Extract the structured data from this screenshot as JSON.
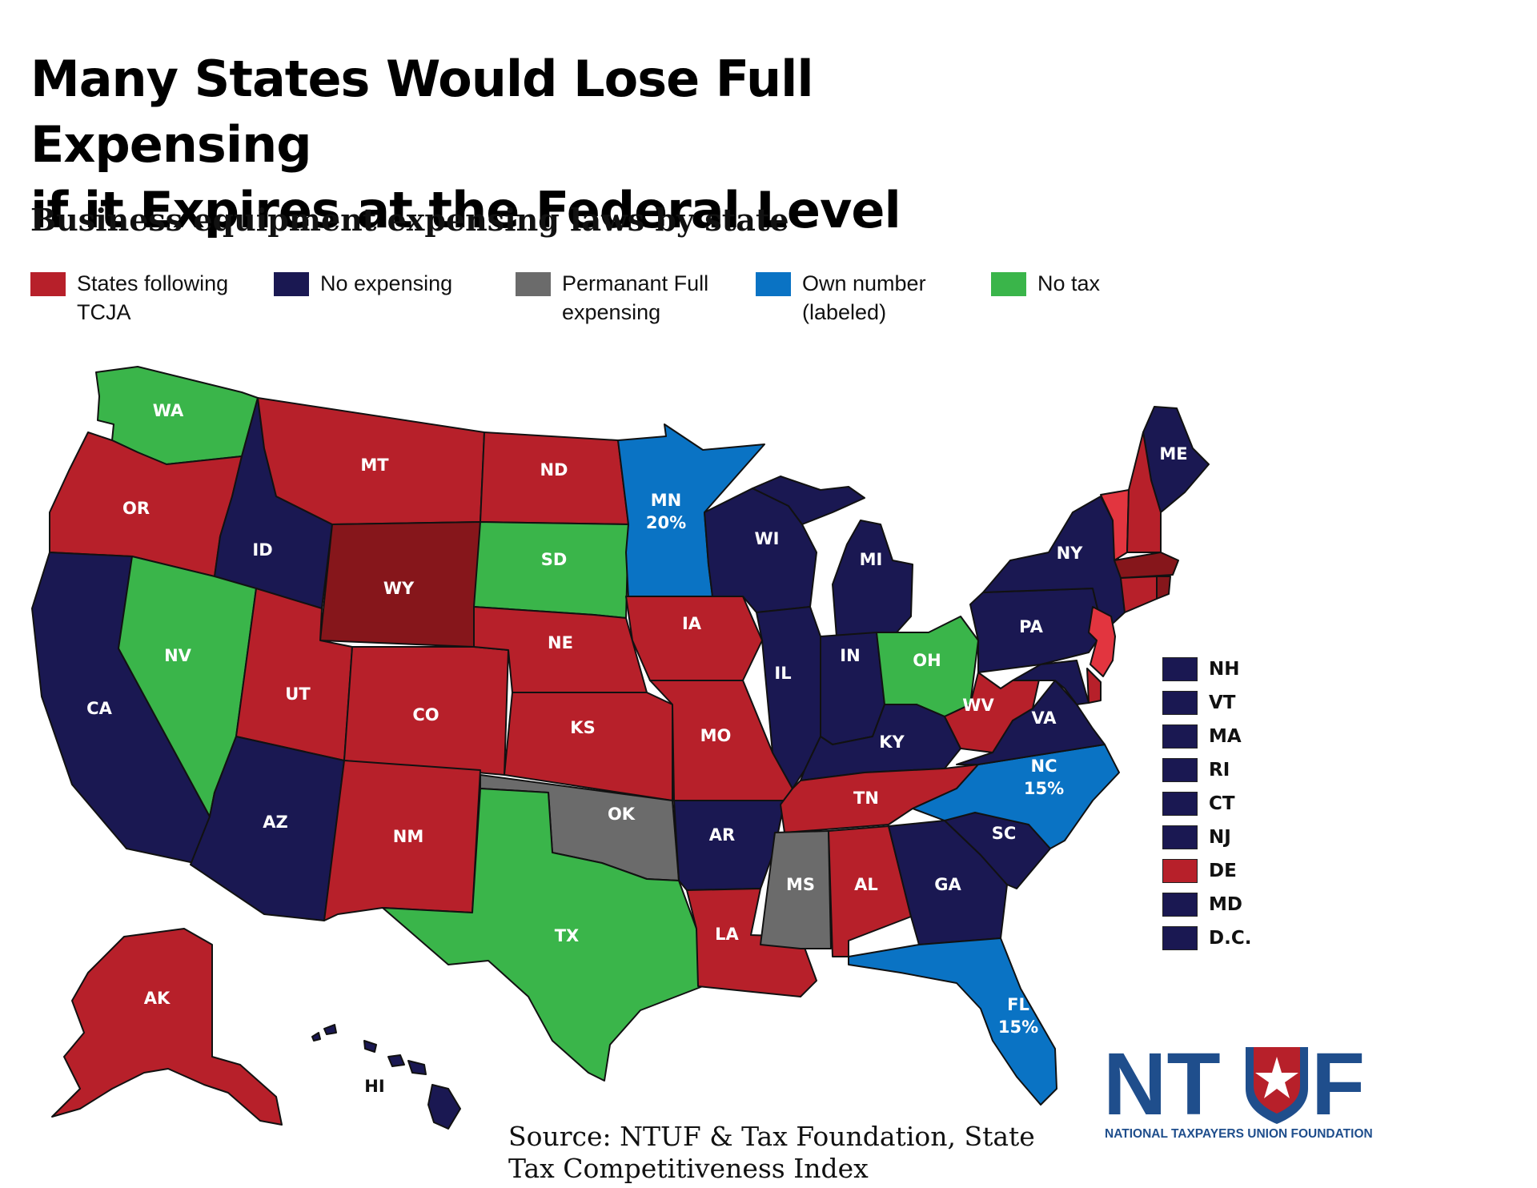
{
  "title_line1": "Many States Would Lose Full Expensing",
  "title_line2": "if it Expires at the Federal Level",
  "subtitle": "Business equipment expensing laws by state",
  "legend": [
    {
      "key": "tcja",
      "label_line1": "States following",
      "label_line2": "TCJA",
      "color": "#B7202A"
    },
    {
      "key": "none",
      "label_line1": "No expensing",
      "label_line2": "",
      "color": "#1A1852"
    },
    {
      "key": "perm",
      "label_line1": "Permanant Full",
      "label_line2": "expensing",
      "color": "#6B6B6B"
    },
    {
      "key": "own",
      "label_line1": "Own number",
      "label_line2": "(labeled)",
      "color": "#0A73C4"
    },
    {
      "key": "notax",
      "label_line1": "No tax",
      "label_line2": "",
      "color": "#3AB54A"
    }
  ],
  "colors": {
    "tcja": "#B7202A",
    "tcja_dark": "#86161B",
    "tcja_light": "#E2353F",
    "none": "#1A1852",
    "perm": "#6B6B6B",
    "own": "#0A73C4",
    "notax": "#3AB54A"
  },
  "states": {
    "WA": {
      "label": "WA",
      "category": "notax"
    },
    "OR": {
      "label": "OR",
      "category": "tcja"
    },
    "CA": {
      "label": "CA",
      "category": "none"
    },
    "ID": {
      "label": "ID",
      "category": "none"
    },
    "NV": {
      "label": "NV",
      "category": "notax"
    },
    "MT": {
      "label": "MT",
      "category": "tcja"
    },
    "WY": {
      "label": "WY",
      "category": "tcja"
    },
    "UT": {
      "label": "UT",
      "category": "tcja"
    },
    "AZ": {
      "label": "AZ",
      "category": "none"
    },
    "CO": {
      "label": "CO",
      "category": "tcja"
    },
    "NM": {
      "label": "NM",
      "category": "tcja"
    },
    "ND": {
      "label": "ND",
      "category": "tcja"
    },
    "SD": {
      "label": "SD",
      "category": "notax"
    },
    "NE": {
      "label": "NE",
      "category": "tcja"
    },
    "KS": {
      "label": "KS",
      "category": "tcja"
    },
    "OK": {
      "label": "OK",
      "category": "perm"
    },
    "TX": {
      "label": "TX",
      "category": "notax"
    },
    "MN": {
      "label": "MN",
      "value": "20%",
      "category": "own"
    },
    "IA": {
      "label": "IA",
      "category": "tcja"
    },
    "MO": {
      "label": "MO",
      "category": "tcja"
    },
    "AR": {
      "label": "AR",
      "category": "none"
    },
    "LA": {
      "label": "LA",
      "category": "tcja"
    },
    "WI": {
      "label": "WI",
      "category": "none"
    },
    "IL": {
      "label": "IL",
      "category": "none"
    },
    "MI": {
      "label": "MI",
      "category": "none"
    },
    "IN": {
      "label": "IN",
      "category": "none"
    },
    "OH": {
      "label": "OH",
      "category": "notax"
    },
    "KY": {
      "label": "KY",
      "category": "none"
    },
    "TN": {
      "label": "TN",
      "category": "tcja"
    },
    "MS": {
      "label": "MS",
      "category": "perm"
    },
    "AL": {
      "label": "AL",
      "category": "tcja"
    },
    "GA": {
      "label": "GA",
      "category": "none"
    },
    "FL": {
      "label": "FL",
      "value": "15%",
      "category": "own"
    },
    "SC": {
      "label": "SC",
      "category": "none"
    },
    "NC": {
      "label": "NC",
      "value": "15%",
      "category": "own"
    },
    "VA": {
      "label": "VA",
      "category": "none"
    },
    "WV": {
      "label": "WV",
      "category": "tcja"
    },
    "PA": {
      "label": "PA",
      "category": "none"
    },
    "NY": {
      "label": "NY",
      "category": "none"
    },
    "ME": {
      "label": "ME",
      "category": "none"
    },
    "AK": {
      "label": "AK",
      "category": "tcja"
    },
    "HI": {
      "label": "HI",
      "category": "none"
    }
  },
  "small_states": [
    {
      "label": "NH",
      "category": "none"
    },
    {
      "label": "VT",
      "category": "none"
    },
    {
      "label": "MA",
      "category": "none"
    },
    {
      "label": "RI",
      "category": "none"
    },
    {
      "label": "CT",
      "category": "none"
    },
    {
      "label": "NJ",
      "category": "none"
    },
    {
      "label": "DE",
      "category": "tcja"
    },
    {
      "label": "MD",
      "category": "none"
    },
    {
      "label": "D.C.",
      "category": "none"
    }
  ],
  "source_line1": "Source: NTUF & Tax Foundation, State",
  "source_line2": "Tax Competitiveness Index",
  "logo": {
    "text_n": "NT",
    "text_f": "F",
    "tagline": "NATIONAL TAXPAYERS UNION FOUNDATION",
    "color": "#1F4E8C",
    "star_color": "#B7202A"
  }
}
